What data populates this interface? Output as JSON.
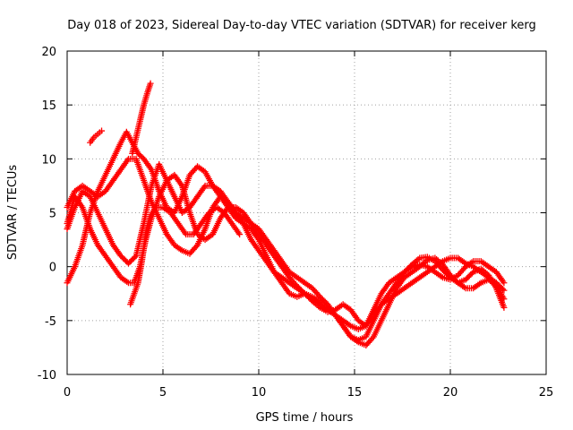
{
  "chart_data": {
    "type": "scatter",
    "title": "Day 018 of 2023, Sidereal Day-to-day VTEC variation (SDTVAR) for receiver kerg",
    "xlabel": "GPS time / hours",
    "ylabel": "SDTVAR / TECUs",
    "xlim": [
      0,
      25
    ],
    "ylim": [
      -10,
      20
    ],
    "grid": true,
    "x_ticks": [
      "0",
      "5",
      "10",
      "15",
      "20",
      "25"
    ],
    "y_ticks": [
      "-10",
      "-5",
      "0",
      "5",
      "10",
      "15",
      "20"
    ],
    "marker": "+",
    "series_color": "#ff0000",
    "series": [
      {
        "name": "track-1",
        "points": [
          [
            0,
            -1.5
          ],
          [
            0.4,
            0
          ],
          [
            0.8,
            2
          ],
          [
            1.2,
            5
          ],
          [
            1.6,
            7
          ],
          [
            2.0,
            8.5
          ],
          [
            2.4,
            10
          ],
          [
            2.8,
            11.5
          ],
          [
            3.1,
            12.5
          ],
          [
            3.4,
            11.5
          ],
          [
            3.7,
            10.5
          ],
          [
            4.0,
            10
          ],
          [
            4.4,
            9
          ],
          [
            4.8,
            7
          ],
          [
            5.2,
            5.5
          ],
          [
            5.6,
            5
          ],
          [
            6.0,
            6.5
          ],
          [
            6.4,
            8.5
          ],
          [
            6.8,
            9.3
          ],
          [
            7.2,
            8.8
          ],
          [
            7.6,
            7.5
          ],
          [
            8.0,
            6.5
          ],
          [
            8.4,
            5.5
          ],
          [
            8.8,
            4.5
          ],
          [
            9.2,
            4
          ],
          [
            9.6,
            3.5
          ],
          [
            10.0,
            2.5
          ],
          [
            10.4,
            1
          ],
          [
            10.8,
            -0.5
          ],
          [
            11.2,
            -1.5
          ],
          [
            11.6,
            -2.5
          ],
          [
            12.0,
            -2.8
          ],
          [
            12.4,
            -2.5
          ],
          [
            12.8,
            -2.8
          ],
          [
            13.2,
            -3.2
          ],
          [
            13.6,
            -3.8
          ],
          [
            14.0,
            -4.5
          ],
          [
            14.4,
            -5.5
          ],
          [
            14.8,
            -6.5
          ],
          [
            15.2,
            -7
          ],
          [
            15.6,
            -7.3
          ],
          [
            16.0,
            -6.5
          ],
          [
            16.4,
            -5
          ],
          [
            16.8,
            -3.5
          ],
          [
            17.2,
            -2
          ],
          [
            17.6,
            -1
          ],
          [
            18.0,
            -0.5
          ],
          [
            18.4,
            0
          ],
          [
            18.8,
            0.6
          ],
          [
            19.2,
            0.8
          ],
          [
            19.6,
            0.2
          ],
          [
            20.0,
            -0.8
          ],
          [
            20.4,
            -1.5
          ],
          [
            20.8,
            -2
          ],
          [
            21.2,
            -2
          ],
          [
            21.6,
            -1.5
          ],
          [
            22.0,
            -1.2
          ],
          [
            22.4,
            -1.8
          ],
          [
            22.8,
            -3
          ]
        ]
      },
      {
        "name": "track-2",
        "points": [
          [
            0,
            3.5
          ],
          [
            0.4,
            5.5
          ],
          [
            0.8,
            7
          ],
          [
            1.2,
            6.5
          ],
          [
            1.6,
            5
          ],
          [
            2.0,
            3.5
          ],
          [
            2.4,
            2
          ],
          [
            2.8,
            1
          ],
          [
            3.2,
            0.3
          ],
          [
            3.6,
            1
          ],
          [
            4.0,
            4
          ],
          [
            4.4,
            7.5
          ],
          [
            4.8,
            9.5
          ],
          [
            5.2,
            8
          ],
          [
            5.6,
            6.5
          ],
          [
            6.0,
            5
          ],
          [
            6.4,
            5.5
          ],
          [
            6.8,
            6.5
          ],
          [
            7.2,
            7.5
          ],
          [
            7.6,
            7.5
          ],
          [
            8.0,
            7
          ],
          [
            8.4,
            6
          ],
          [
            8.8,
            5
          ],
          [
            9.2,
            4.5
          ],
          [
            9.6,
            4
          ],
          [
            10.0,
            3.5
          ],
          [
            10.4,
            2.5
          ],
          [
            10.8,
            1.5
          ],
          [
            11.2,
            0.5
          ],
          [
            11.6,
            -0.5
          ],
          [
            12.0,
            -1
          ],
          [
            12.4,
            -1.5
          ],
          [
            12.8,
            -2
          ],
          [
            13.2,
            -2.8
          ],
          [
            13.6,
            -3.5
          ],
          [
            14.0,
            -4.5
          ],
          [
            14.4,
            -5.5
          ],
          [
            14.8,
            -6.5
          ],
          [
            15.2,
            -6.8
          ],
          [
            15.6,
            -6.5
          ],
          [
            16.0,
            -5
          ],
          [
            16.4,
            -3.5
          ],
          [
            16.8,
            -2.5
          ],
          [
            17.2,
            -1.5
          ],
          [
            17.6,
            -0.5
          ],
          [
            18.0,
            0.2
          ],
          [
            18.4,
            0.8
          ],
          [
            18.8,
            0.9
          ],
          [
            19.2,
            0.5
          ],
          [
            19.6,
            -0.3
          ],
          [
            20.0,
            -1
          ],
          [
            20.4,
            -1.5
          ],
          [
            20.8,
            -1.2
          ],
          [
            21.2,
            -0.5
          ],
          [
            21.6,
            -0.2
          ],
          [
            22.0,
            -0.8
          ],
          [
            22.4,
            -2
          ],
          [
            22.8,
            -3.8
          ]
        ]
      },
      {
        "name": "track-3",
        "points": [
          [
            0,
            5.5
          ],
          [
            0.4,
            7
          ],
          [
            0.8,
            7.5
          ],
          [
            1.2,
            7
          ],
          [
            1.6,
            6.5
          ],
          [
            2.0,
            7
          ],
          [
            2.4,
            8
          ],
          [
            2.8,
            9
          ],
          [
            3.2,
            10
          ],
          [
            3.6,
            10
          ],
          [
            4.0,
            8
          ],
          [
            4.4,
            6
          ],
          [
            4.8,
            4.5
          ],
          [
            5.2,
            3
          ],
          [
            5.6,
            2
          ],
          [
            6.0,
            1.5
          ],
          [
            6.4,
            1.2
          ],
          [
            6.8,
            2
          ],
          [
            7.2,
            3.5
          ],
          [
            7.6,
            5.5
          ],
          [
            8.0,
            6.5
          ],
          [
            8.4,
            6
          ],
          [
            8.8,
            5
          ],
          [
            9.2,
            4
          ],
          [
            9.6,
            2.5
          ],
          [
            10.0,
            1.5
          ],
          [
            10.4,
            0.5
          ],
          [
            10.8,
            -0.5
          ],
          [
            11.2,
            -1
          ],
          [
            11.6,
            -1.5
          ],
          [
            12.0,
            -2
          ],
          [
            12.4,
            -2.5
          ],
          [
            12.8,
            -3
          ],
          [
            13.2,
            -3.5
          ],
          [
            13.6,
            -4
          ],
          [
            14.0,
            -4.5
          ],
          [
            14.4,
            -5
          ],
          [
            14.8,
            -5.5
          ],
          [
            15.2,
            -5.8
          ],
          [
            15.6,
            -5.5
          ],
          [
            16.0,
            -4.5
          ],
          [
            16.4,
            -3.5
          ],
          [
            16.8,
            -3
          ],
          [
            17.2,
            -2.5
          ],
          [
            17.6,
            -2
          ],
          [
            18.0,
            -1.5
          ],
          [
            18.4,
            -1
          ],
          [
            18.8,
            -0.5
          ],
          [
            19.2,
            0
          ],
          [
            19.6,
            0.5
          ],
          [
            20.0,
            0.8
          ],
          [
            20.4,
            0.8
          ],
          [
            20.8,
            0.3
          ],
          [
            21.2,
            0
          ],
          [
            21.6,
            -0.5
          ],
          [
            22.0,
            -1
          ],
          [
            22.4,
            -1.5
          ],
          [
            22.8,
            -2.2
          ]
        ]
      },
      {
        "name": "track-4",
        "points": [
          [
            0,
            4
          ],
          [
            0.4,
            6.5
          ],
          [
            0.8,
            5.5
          ],
          [
            1.2,
            3.5
          ],
          [
            1.6,
            2
          ],
          [
            2.0,
            1
          ],
          [
            2.4,
            0
          ],
          [
            2.8,
            -1
          ],
          [
            3.2,
            -1.5
          ],
          [
            3.5,
            -1.5
          ],
          [
            3.8,
            0
          ],
          [
            4.1,
            2.5
          ],
          [
            4.4,
            4.5
          ],
          [
            4.8,
            6.5
          ],
          [
            5.2,
            8
          ],
          [
            5.6,
            8.5
          ],
          [
            6.0,
            7.5
          ],
          [
            6.4,
            5
          ],
          [
            6.8,
            3
          ],
          [
            7.2,
            2.5
          ],
          [
            7.6,
            3
          ],
          [
            8.0,
            4.5
          ],
          [
            8.4,
            5.5
          ],
          [
            8.8,
            5.5
          ],
          [
            9.2,
            5
          ],
          [
            9.6,
            4
          ],
          [
            10.0,
            3
          ],
          [
            10.4,
            2
          ],
          [
            10.8,
            1
          ],
          [
            11.2,
            0
          ],
          [
            11.6,
            -1
          ],
          [
            12.0,
            -1.8
          ],
          [
            12.4,
            -2.5
          ],
          [
            12.8,
            -3.2
          ],
          [
            13.2,
            -3.8
          ],
          [
            13.6,
            -4.2
          ],
          [
            14.0,
            -4
          ],
          [
            14.4,
            -3.5
          ],
          [
            14.8,
            -4
          ],
          [
            15.2,
            -5
          ],
          [
            15.6,
            -5.5
          ],
          [
            16.0,
            -4
          ],
          [
            16.4,
            -2.5
          ],
          [
            16.8,
            -1.5
          ],
          [
            17.2,
            -1
          ],
          [
            17.6,
            -0.5
          ],
          [
            18.0,
            0
          ],
          [
            18.4,
            0.2
          ],
          [
            18.8,
            0
          ],
          [
            19.2,
            -0.5
          ],
          [
            19.6,
            -1
          ],
          [
            20.0,
            -1.2
          ],
          [
            20.4,
            -0.8
          ],
          [
            20.8,
            0
          ],
          [
            21.2,
            0.5
          ],
          [
            21.6,
            0.5
          ],
          [
            22.0,
            0
          ],
          [
            22.4,
            -0.5
          ],
          [
            22.8,
            -1.5
          ]
        ]
      },
      {
        "name": "track-5",
        "points": [
          [
            3.3,
            -3.5
          ],
          [
            3.5,
            -2.5
          ],
          [
            3.7,
            -1.5
          ],
          [
            3.9,
            0.5
          ],
          [
            4.1,
            3
          ],
          [
            4.3,
            4.5
          ],
          [
            4.6,
            5.5
          ],
          [
            5.0,
            5.5
          ],
          [
            5.4,
            5
          ],
          [
            5.8,
            4
          ],
          [
            6.2,
            3
          ],
          [
            6.6,
            3
          ],
          [
            7.0,
            4
          ],
          [
            7.4,
            5
          ],
          [
            7.8,
            5.5
          ],
          [
            8.2,
            5
          ],
          [
            8.6,
            4
          ],
          [
            9.0,
            3
          ]
        ]
      },
      {
        "name": "track-6",
        "points": [
          [
            1.2,
            11.5
          ],
          [
            1.4,
            12
          ],
          [
            1.6,
            12.3
          ],
          [
            1.8,
            12.6
          ]
        ]
      },
      {
        "name": "track-7",
        "points": [
          [
            3.4,
            10.5
          ],
          [
            3.6,
            12
          ],
          [
            3.8,
            13.5
          ],
          [
            4.0,
            15
          ],
          [
            4.2,
            16.2
          ],
          [
            4.35,
            17
          ]
        ]
      }
    ]
  }
}
